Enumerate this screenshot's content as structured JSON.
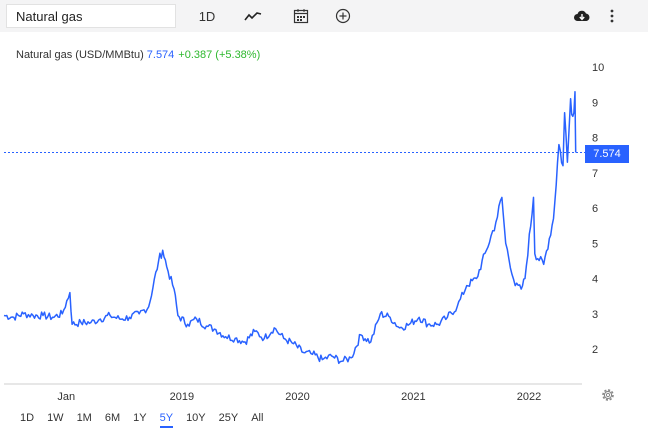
{
  "toolbar": {
    "symbol": "Natural gas",
    "interval": "1D",
    "icons": [
      "chart-type-line-icon",
      "calendar-icon",
      "add-indicator-icon",
      "download-cloud-icon",
      "more-vertical-icon"
    ]
  },
  "legend": {
    "name": "Natural gas (USD/MMBtu)",
    "price": "7.574",
    "change": "+0.387 (+5.38%)"
  },
  "last_price_label": "7.574",
  "range_buttons": [
    "1D",
    "1W",
    "1M",
    "6M",
    "1Y",
    "5Y",
    "10Y",
    "25Y",
    "All"
  ],
  "active_range": "5Y",
  "colors": {
    "line": "#2962ff",
    "positive": "#2eb82e",
    "toolbar_bg": "#f4f4f5"
  },
  "chart_data": {
    "type": "line",
    "series": [
      {
        "name": "Natural gas (USD/MMBtu)",
        "x": [
          "2017-07-01",
          "2017-08-01",
          "2017-09-01",
          "2017-10-01",
          "2017-11-01",
          "2017-12-01",
          "2018-01-01",
          "2018-01-25",
          "2018-02-01",
          "2018-03-01",
          "2018-04-01",
          "2018-05-01",
          "2018-06-01",
          "2018-07-01",
          "2018-08-01",
          "2018-09-01",
          "2018-10-01",
          "2018-11-01",
          "2018-11-14",
          "2018-12-01",
          "2018-12-20",
          "2019-01-01",
          "2019-02-01",
          "2019-03-01",
          "2019-04-01",
          "2019-05-01",
          "2019-06-01",
          "2019-07-01",
          "2019-08-01",
          "2019-09-01",
          "2019-10-01",
          "2019-11-01",
          "2019-12-01",
          "2020-01-01",
          "2020-02-01",
          "2020-03-01",
          "2020-04-01",
          "2020-05-01",
          "2020-06-01",
          "2020-07-01",
          "2020-08-01",
          "2020-09-01",
          "2020-10-01",
          "2020-11-01",
          "2020-12-01",
          "2021-01-01",
          "2021-02-01",
          "2021-03-01",
          "2021-04-01",
          "2021-05-01",
          "2021-06-01",
          "2021-07-01",
          "2021-08-01",
          "2021-09-01",
          "2021-10-01",
          "2021-10-20",
          "2021-11-01",
          "2021-12-01",
          "2021-12-20",
          "2022-01-01",
          "2022-01-28",
          "2022-02-01",
          "2022-03-01",
          "2022-04-01",
          "2022-04-18",
          "2022-05-01",
          "2022-05-06",
          "2022-05-15",
          "2022-05-25",
          "2022-06-01",
          "2022-06-08",
          "2022-06-10"
        ],
        "y": [
          2.95,
          2.9,
          3.0,
          2.95,
          2.95,
          2.9,
          3.0,
          3.6,
          2.7,
          2.75,
          2.75,
          2.85,
          2.95,
          2.85,
          2.9,
          3.0,
          3.2,
          4.5,
          4.8,
          4.2,
          3.7,
          2.95,
          2.7,
          2.85,
          2.65,
          2.55,
          2.35,
          2.3,
          2.2,
          2.5,
          2.3,
          2.6,
          2.3,
          2.15,
          1.9,
          1.85,
          1.7,
          1.8,
          1.65,
          1.75,
          2.4,
          2.2,
          3.0,
          2.9,
          2.6,
          2.7,
          2.9,
          2.7,
          2.7,
          2.9,
          3.2,
          3.8,
          4.0,
          4.8,
          5.6,
          6.3,
          5.0,
          3.8,
          3.7,
          4.0,
          6.3,
          4.7,
          4.4,
          5.7,
          7.8,
          7.2,
          8.7,
          7.3,
          9.1,
          8.6,
          9.3,
          7.574
        ]
      }
    ],
    "x_ticks": [
      "Jan",
      "2019",
      "2020",
      "2021",
      "2022"
    ],
    "y_ticks": [
      "2",
      "3",
      "4",
      "5",
      "6",
      "7",
      "8",
      "9",
      "10"
    ],
    "ylim": [
      1.2,
      10.2
    ],
    "xlim": [
      "2017-07-01",
      "2022-06-30"
    ],
    "last_value": 7.574
  }
}
